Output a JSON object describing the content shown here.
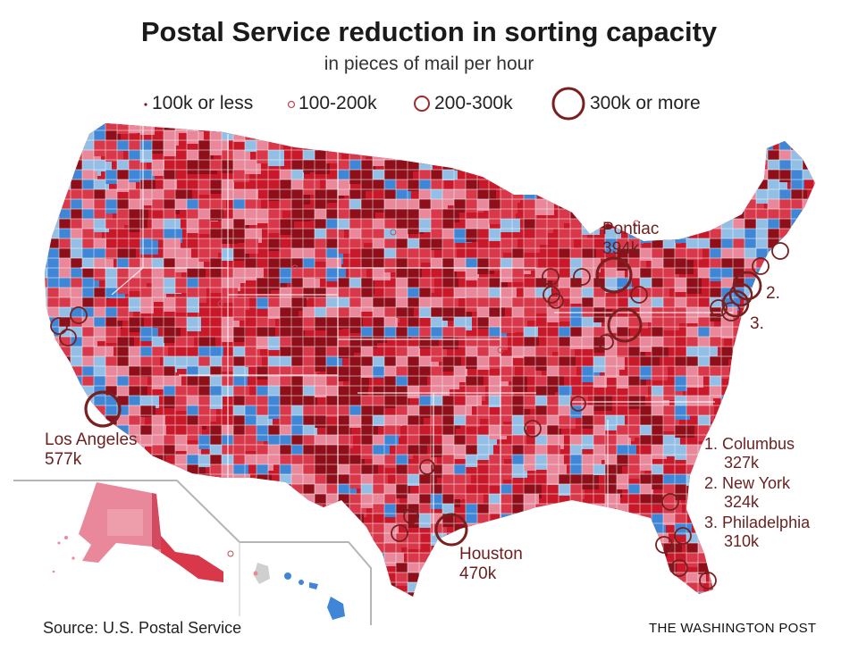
{
  "title": "Postal Service reduction in sorting capacity",
  "subtitle": "in pieces of mail per hour",
  "legend": [
    {
      "label": "100k or less",
      "size": "tiny"
    },
    {
      "label": "100-200k",
      "size": "small"
    },
    {
      "label": "200-300k",
      "size": "medium"
    },
    {
      "label": "300k or more",
      "size": "large"
    }
  ],
  "colors": {
    "dark_red": "#8e0f1a",
    "red": "#c8182a",
    "mid_red": "#d9374a",
    "light_red": "#e8889a",
    "light_blue": "#93bfe6",
    "blue": "#3f86d6",
    "dark_blue": "#1f5fb8",
    "circle": "#7a1f1f",
    "border": "#f2f2f2"
  },
  "callouts": {
    "pontiac": {
      "name": "Pontiac",
      "value": "394k"
    },
    "los_angeles": {
      "name": "Los Angeles",
      "value": "577k"
    },
    "houston": {
      "name": "Houston",
      "value": "470k"
    },
    "marker_2": "2.",
    "marker_3": "3."
  },
  "annotations": [
    {
      "label": "1. Columbus",
      "value": "327k"
    },
    {
      "label": "2. New York",
      "value": "324k"
    },
    {
      "label": "3. Philadelphia",
      "value": "310k"
    }
  ],
  "source": "Source: U.S. Postal Service",
  "credit": "THE WASHINGTON POST"
}
